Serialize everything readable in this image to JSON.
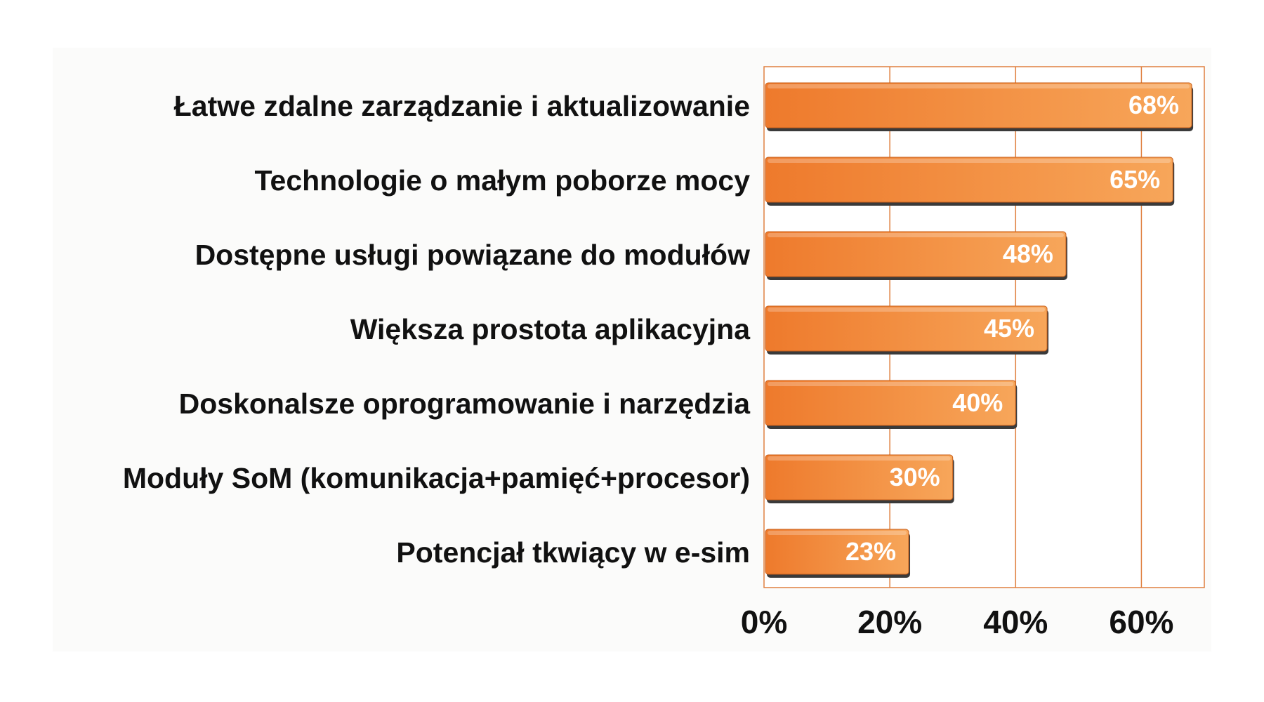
{
  "chart_data": {
    "type": "bar",
    "orientation": "horizontal",
    "categories": [
      "Łatwe zdalne zarządzanie i aktualizowanie",
      "Technologie o małym poborze mocy",
      "Dostępne usługi powiązane do modułów",
      "Większa prostota aplikacyjna",
      "Doskonalsze oprogramowanie i narzędzia",
      "Moduły SoM (komunikacja+pamięć+procesor)",
      "Potencjał tkwiący w e-sim"
    ],
    "values": [
      68,
      65,
      48,
      45,
      40,
      30,
      23
    ],
    "value_labels": [
      "68%",
      "65%",
      "48%",
      "45%",
      "40%",
      "30%",
      "23%"
    ],
    "xlim": [
      0,
      70
    ],
    "ticks": [
      0,
      20,
      40,
      60
    ],
    "tick_labels": [
      "0%",
      "20%",
      "40%",
      "60%"
    ],
    "title": "",
    "xlabel": "",
    "ylabel": "",
    "grid": true,
    "legend": "none",
    "colors": {
      "bar_light": "#f7a65a",
      "bar_dark": "#ee7a2c",
      "bar_shadow": "#3a3a3a",
      "grid": "#e08040",
      "text": "#111111",
      "value_text": "#ffffff"
    }
  }
}
